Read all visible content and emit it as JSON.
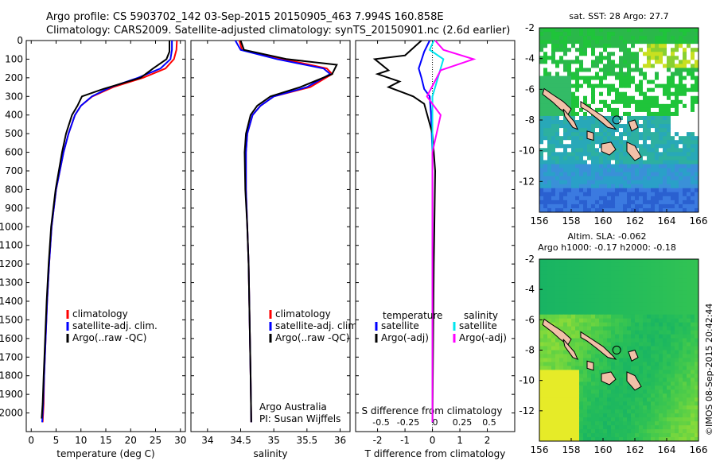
{
  "header": {
    "line1": "Argo profile: CS 5903702_142 03-Sep-2015 20150905_463 7.994S 160.858E",
    "line2": "Climatology: CARS2009. Satellite-adjusted climatology: synTS_20150901.nc (2.6d earlier)"
  },
  "credit": "©IMOS 08-Sep-2015 20:42:44",
  "colors": {
    "climatology": "#ff0000",
    "satellite": "#0000ff",
    "argo": "#000000",
    "sal_satellite": "#00e5ee",
    "sal_argo": "#ff00ff",
    "land": "#f2c0a8",
    "map_green": "#22bb33"
  },
  "chart_data": [
    {
      "type": "line",
      "xlabel": "temperature (deg C)",
      "ylabel": "",
      "xlim": [
        -1,
        31
      ],
      "ylim": [
        2100,
        0
      ],
      "xticks": [
        0,
        5,
        10,
        15,
        20,
        25,
        30
      ],
      "yticks": [
        0,
        100,
        200,
        300,
        400,
        500,
        600,
        700,
        800,
        900,
        1000,
        1100,
        1200,
        1300,
        1400,
        1500,
        1600,
        1700,
        1800,
        1900,
        2000
      ],
      "legend": [
        "climatology",
        "satellite-adj. clim.",
        "Argo(..raw -QC)"
      ],
      "legend_position": "lower-center",
      "series": [
        {
          "name": "climatology",
          "color": "#ff0000",
          "x": [
            29.3,
            29.2,
            28.7,
            27.0,
            22.5,
            16.5,
            12.3,
            10.0,
            8.8,
            7.5,
            6.5,
            5.0,
            4.1,
            3.6,
            3.2,
            2.9,
            2.6,
            2.5,
            2.3
          ],
          "y": [
            0,
            50,
            100,
            150,
            200,
            250,
            300,
            350,
            400,
            500,
            600,
            800,
            1000,
            1200,
            1400,
            1600,
            1800,
            1950,
            2050
          ]
        },
        {
          "name": "satellite-adj. clim.",
          "color": "#0000ff",
          "x": [
            28.3,
            28.3,
            28.0,
            26.0,
            21.5,
            16.0,
            12.2,
            10.0,
            8.8,
            7.5,
            6.5,
            5.0,
            4.1,
            3.6,
            3.2,
            2.9,
            2.6,
            2.4,
            2.2
          ],
          "y": [
            0,
            50,
            100,
            150,
            200,
            250,
            300,
            350,
            400,
            500,
            600,
            800,
            1000,
            1200,
            1400,
            1600,
            1800,
            1950,
            2050
          ]
        },
        {
          "name": "Argo(..raw -QC)",
          "color": "#000000",
          "x": [
            27.8,
            27.8,
            27.2,
            24.5,
            22.0,
            14.5,
            10.2,
            9.3,
            8.2,
            7.0,
            6.2,
            4.9,
            4.0,
            3.5,
            3.1,
            2.8,
            2.5,
            2.3,
            2.1
          ],
          "y": [
            0,
            60,
            100,
            150,
            200,
            260,
            300,
            350,
            400,
            500,
            600,
            800,
            1000,
            1200,
            1400,
            1600,
            1800,
            1950,
            2030
          ]
        }
      ]
    },
    {
      "type": "line",
      "xlabel": "salinity",
      "xlim": [
        33.75,
        36.15
      ],
      "ylim": [
        2100,
        0
      ],
      "xticks": [
        34,
        34.5,
        35,
        35.5,
        36
      ],
      "legend": [
        "climatology",
        "satellite-adj. clim.",
        "Argo(..raw -QC)"
      ],
      "annotation": [
        "Argo Australia",
        "PI: Susan Wijffels"
      ],
      "series": [
        {
          "name": "climatology",
          "color": "#ff0000",
          "x": [
            34.48,
            34.52,
            35.15,
            35.8,
            35.88,
            35.55,
            35.0,
            34.8,
            34.68,
            34.6,
            34.58,
            34.58,
            34.6,
            34.62,
            34.63,
            34.64,
            34.65,
            34.66
          ],
          "y": [
            0,
            50,
            100,
            150,
            180,
            250,
            300,
            350,
            400,
            500,
            600,
            800,
            1000,
            1200,
            1400,
            1600,
            1800,
            2050
          ]
        },
        {
          "name": "satellite-adj. clim.",
          "color": "#0000ff",
          "x": [
            34.42,
            34.5,
            35.05,
            35.75,
            35.85,
            35.5,
            35.0,
            34.8,
            34.68,
            34.6,
            34.58,
            34.58,
            34.6,
            34.62,
            34.63,
            34.64,
            34.65,
            34.66
          ],
          "y": [
            0,
            50,
            100,
            150,
            180,
            250,
            300,
            350,
            400,
            500,
            600,
            800,
            1000,
            1200,
            1400,
            1600,
            1800,
            2050
          ]
        },
        {
          "name": "Argo(..raw -QC)",
          "color": "#000000",
          "x": [
            34.5,
            34.55,
            35.2,
            35.95,
            35.88,
            35.4,
            34.95,
            34.75,
            34.65,
            34.58,
            34.56,
            34.57,
            34.6,
            34.62,
            34.63,
            34.64,
            34.65,
            34.66
          ],
          "y": [
            0,
            50,
            100,
            130,
            180,
            250,
            300,
            350,
            400,
            500,
            600,
            800,
            1000,
            1200,
            1400,
            1600,
            1800,
            2050
          ]
        }
      ]
    },
    {
      "type": "line",
      "xlabel": "T difference from climatology",
      "xlabel_top": "S difference from climatology",
      "xlim": [
        -2.8,
        3.0
      ],
      "ylim": [
        2100,
        0
      ],
      "xticks": [
        -2,
        -1,
        0,
        1,
        2
      ],
      "xticks_top": [
        "-0.5",
        "-0.25",
        "0",
        "0.25",
        "0.5"
      ],
      "legend_left_title": "temperature",
      "legend_right_title": "salinity",
      "legend": [
        "satellite",
        "Argo(-adj)",
        "satellite",
        "Argo(-adj)"
      ],
      "series": [
        {
          "name": "satellite",
          "color": "#0000ff",
          "x": [
            -0.1,
            -0.3,
            -0.5,
            -0.4,
            -0.3,
            -0.1,
            -0.05,
            0,
            0,
            0
          ],
          "y": [
            0,
            60,
            150,
            200,
            260,
            300,
            400,
            600,
            1200,
            2050
          ]
        },
        {
          "name": "Argo(-adj)",
          "color": "#000000",
          "x": [
            -0.4,
            -1.0,
            -2.1,
            -1.6,
            -2.0,
            -1.2,
            -1.6,
            -0.7,
            -0.3,
            0.0,
            0.1,
            0.05,
            0
          ],
          "y": [
            0,
            80,
            100,
            160,
            180,
            220,
            250,
            300,
            340,
            500,
            700,
            1200,
            2050
          ]
        },
        {
          "name": "satellite",
          "color": "#00e5ee",
          "x": [
            0.05,
            -0.1,
            0.4,
            0.2,
            0.0,
            0.0,
            0.0,
            0.0
          ],
          "y": [
            0,
            50,
            100,
            200,
            300,
            600,
            1200,
            2050
          ]
        },
        {
          "name": "Argo(-adj)",
          "color": "#ff00ff",
          "x": [
            0.1,
            0.4,
            1.5,
            0.3,
            -0.2,
            0.3,
            0.0,
            0.0,
            0.0
          ],
          "y": [
            0,
            50,
            100,
            160,
            300,
            400,
            600,
            1200,
            2050
          ]
        }
      ]
    },
    {
      "type": "heatmap",
      "title": "sat. SST: 28 Argo: 27.7",
      "xlim": [
        156,
        166
      ],
      "ylim": [
        -14,
        -2
      ],
      "xticks": [
        156,
        158,
        160,
        162,
        164,
        166
      ],
      "yticks": [
        -2,
        -4,
        -6,
        -8,
        -10,
        -12
      ]
    },
    {
      "type": "heatmap",
      "title": "Altim. SLA: -0.062",
      "subtitle": "Argo h1000: -0.17 h2000: -0.18",
      "xlim": [
        156,
        166
      ],
      "ylim": [
        -14,
        -2
      ],
      "xticks": [
        156,
        158,
        160,
        162,
        164,
        166
      ],
      "yticks": [
        -2,
        -4,
        -6,
        -8,
        -10,
        -12
      ]
    }
  ]
}
